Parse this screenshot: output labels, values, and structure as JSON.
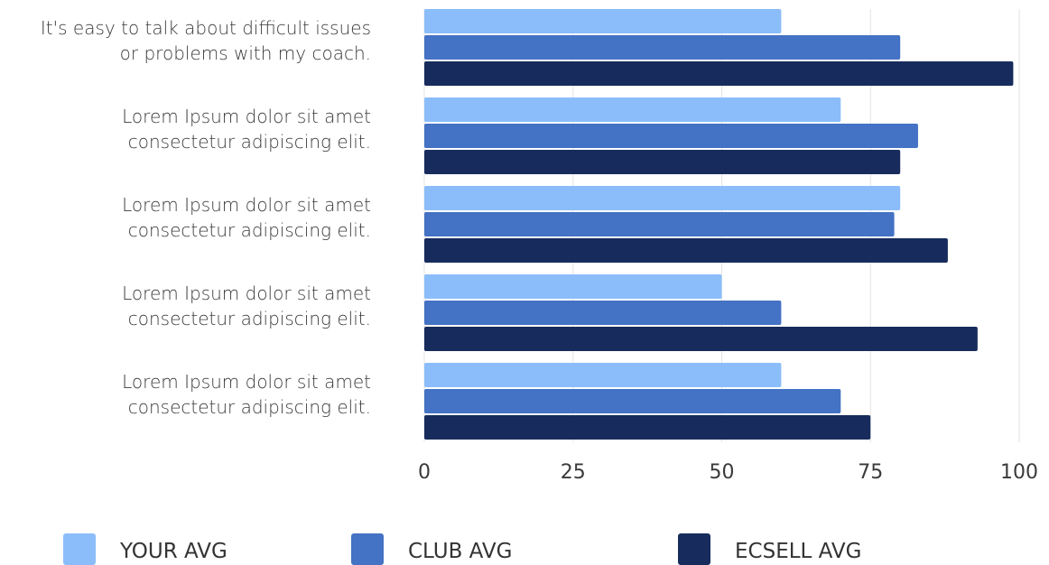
{
  "chart_data": {
    "type": "bar",
    "orientation": "horizontal",
    "categories": [
      [
        "It's easy to talk about difficult issues",
        "or problems with my coach."
      ],
      [
        "Lorem Ipsum dolor sit amet",
        "consectetur adipiscing elit."
      ],
      [
        "Lorem Ipsum dolor sit amet",
        "consectetur adipiscing elit."
      ],
      [
        "Lorem Ipsum dolor sit amet",
        "consectetur adipiscing elit."
      ],
      [
        "Lorem Ipsum dolor sit amet",
        "consectetur adipiscing elit."
      ]
    ],
    "series": [
      {
        "name": "YOUR AVG",
        "color": "#8bbdfa",
        "values": [
          60,
          70,
          80,
          50,
          60
        ]
      },
      {
        "name": "CLUB AVG",
        "color": "#4472c4",
        "values": [
          80,
          83,
          79,
          60,
          70
        ]
      },
      {
        "name": "ECSELL AVG",
        "color": "#172c5c",
        "values": [
          99,
          80,
          88,
          93,
          75
        ]
      }
    ],
    "xlim": [
      0,
      100
    ],
    "xticks": [
      0,
      25,
      50,
      75,
      100
    ],
    "grid": true,
    "legend_position": "bottom"
  }
}
